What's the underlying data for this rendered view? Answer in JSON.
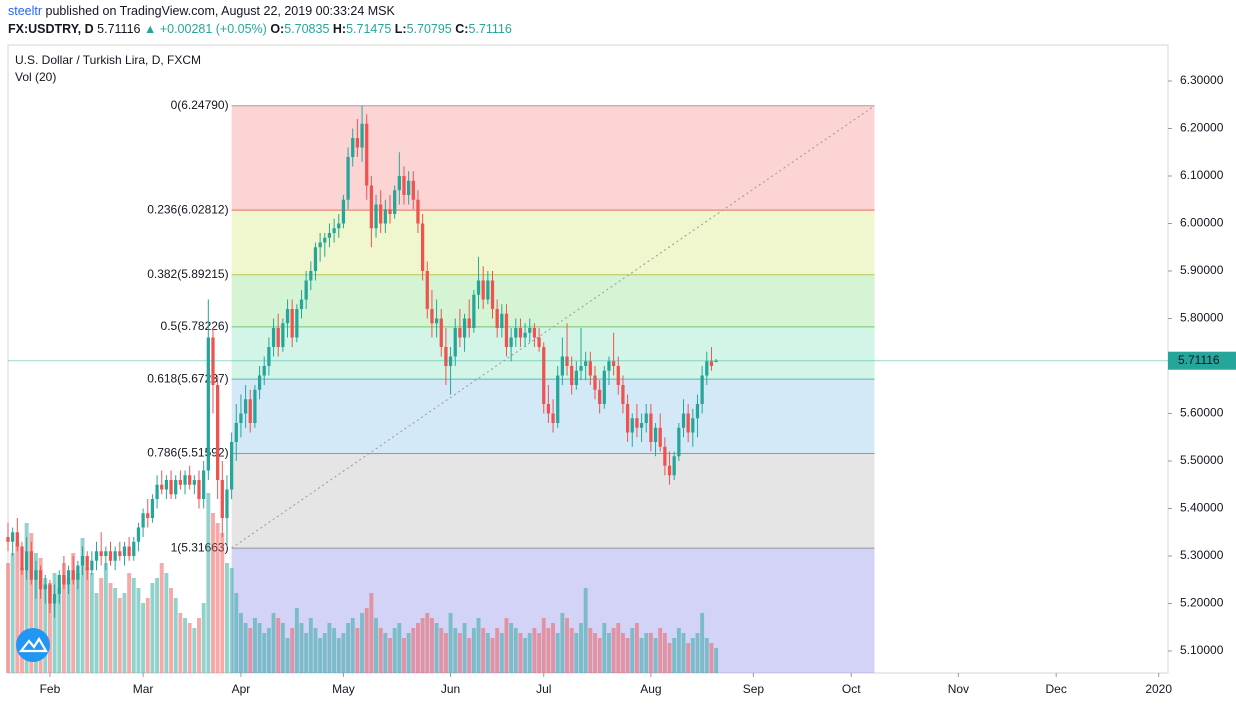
{
  "header": {
    "author": "steeltr",
    "published": "published on TradingView.com, August 22, 2019 00:33:24 MSK",
    "symbol": "FX:USDTRY, D",
    "last": "5.71116",
    "change": "▲ +0.00281 (+0.05%)",
    "ohlc": [
      {
        "key": "O:",
        "value": "5.70835"
      },
      {
        "key": "H:",
        "value": "5.71475"
      },
      {
        "key": "L:",
        "value": "5.70795"
      },
      {
        "key": "C:",
        "value": "5.71116"
      }
    ]
  },
  "chart_data": {
    "type": "candlestick",
    "title": "U.S. Dollar / Turkish Lira, D, FXCM",
    "volume_label": "Vol (20)",
    "up_color": "#26a69a",
    "down_color": "#ef5350",
    "xlim": [
      0,
      249
    ],
    "xticks": [
      {
        "value": 9,
        "label": "Feb"
      },
      {
        "value": 29,
        "label": "Mar"
      },
      {
        "value": 50,
        "label": "Apr"
      },
      {
        "value": 72,
        "label": "May"
      },
      {
        "value": 95,
        "label": "Jun"
      },
      {
        "value": 115,
        "label": "Jul"
      },
      {
        "value": 138,
        "label": "Aug"
      },
      {
        "value": 160,
        "label": "Sep"
      },
      {
        "value": 181,
        "label": "Oct"
      },
      {
        "value": 204,
        "label": "Nov"
      },
      {
        "value": 225,
        "label": "Dec"
      },
      {
        "value": 247,
        "label": "2020"
      }
    ],
    "ylim": [
      5.0537,
      6.3758
    ],
    "yticks": [
      {
        "value": 5.1,
        "label": "5.10000"
      },
      {
        "value": 5.2,
        "label": "5.20000"
      },
      {
        "value": 5.3,
        "label": "5.30000"
      },
      {
        "value": 5.4,
        "label": "5.40000"
      },
      {
        "value": 5.5,
        "label": "5.50000"
      },
      {
        "value": 5.6,
        "label": "5.60000"
      },
      {
        "value": 5.7,
        "label": "5.70000"
      },
      {
        "value": 5.8,
        "label": "5.80000"
      },
      {
        "value": 5.9,
        "label": "5.90000"
      },
      {
        "value": 6.0,
        "label": "6.00000"
      },
      {
        "value": 6.1,
        "label": "6.10000"
      },
      {
        "value": 6.2,
        "label": "6.20000"
      },
      {
        "value": 6.3,
        "label": "6.30000"
      }
    ],
    "last_price": {
      "value": 5.71116,
      "label": "5.71116",
      "color": "#26a69a"
    },
    "candles": [
      [
        5.34,
        5.37,
        5.31,
        5.33
      ],
      [
        5.33,
        5.36,
        5.3,
        5.35
      ],
      [
        5.35,
        5.38,
        5.31,
        5.32
      ],
      [
        5.32,
        5.33,
        5.26,
        5.27
      ],
      [
        5.27,
        5.34,
        5.25,
        5.31
      ],
      [
        5.31,
        5.33,
        5.24,
        5.25
      ],
      [
        5.25,
        5.29,
        5.21,
        5.27
      ],
      [
        5.27,
        5.28,
        5.21,
        5.23
      ],
      [
        5.23,
        5.26,
        5.2,
        5.24
      ],
      [
        5.24,
        5.25,
        5.18,
        5.2
      ],
      [
        5.2,
        5.24,
        5.17,
        5.22
      ],
      [
        5.22,
        5.27,
        5.2,
        5.26
      ],
      [
        5.26,
        5.3,
        5.23,
        5.24
      ],
      [
        5.24,
        5.28,
        5.22,
        5.27
      ],
      [
        5.27,
        5.3,
        5.24,
        5.25
      ],
      [
        5.25,
        5.29,
        5.23,
        5.28
      ],
      [
        5.28,
        5.32,
        5.26,
        5.3
      ],
      [
        5.3,
        5.31,
        5.25,
        5.27
      ],
      [
        5.27,
        5.31,
        5.26,
        5.29
      ],
      [
        5.29,
        5.33,
        5.27,
        5.31
      ],
      [
        5.31,
        5.35,
        5.28,
        5.3
      ],
      [
        5.3,
        5.32,
        5.27,
        5.31
      ],
      [
        5.31,
        5.33,
        5.28,
        5.29
      ],
      [
        5.29,
        5.32,
        5.27,
        5.31
      ],
      [
        5.31,
        5.33,
        5.29,
        5.3
      ],
      [
        5.3,
        5.33,
        5.28,
        5.32
      ],
      [
        5.32,
        5.34,
        5.29,
        5.3
      ],
      [
        5.3,
        5.34,
        5.29,
        5.33
      ],
      [
        5.33,
        5.37,
        5.31,
        5.36
      ],
      [
        5.36,
        5.4,
        5.34,
        5.39
      ],
      [
        5.39,
        5.42,
        5.36,
        5.38
      ],
      [
        5.38,
        5.43,
        5.37,
        5.42
      ],
      [
        5.42,
        5.47,
        5.4,
        5.45
      ],
      [
        5.45,
        5.48,
        5.43,
        5.44
      ],
      [
        5.44,
        5.47,
        5.42,
        5.46
      ],
      [
        5.46,
        5.48,
        5.42,
        5.43
      ],
      [
        5.43,
        5.47,
        5.42,
        5.46
      ],
      [
        5.46,
        5.48,
        5.44,
        5.45
      ],
      [
        5.45,
        5.48,
        5.43,
        5.47
      ],
      [
        5.47,
        5.49,
        5.44,
        5.45
      ],
      [
        5.45,
        5.47,
        5.43,
        5.46
      ],
      [
        5.46,
        5.48,
        5.4,
        5.42
      ],
      [
        5.42,
        5.5,
        5.4,
        5.48
      ],
      [
        5.48,
        5.84,
        5.46,
        5.76
      ],
      [
        5.76,
        5.78,
        5.6,
        5.66
      ],
      [
        5.66,
        5.68,
        5.42,
        5.46
      ],
      [
        5.46,
        5.5,
        5.34,
        5.38
      ],
      [
        5.38,
        5.47,
        5.32,
        5.44
      ],
      [
        5.44,
        5.56,
        5.42,
        5.54
      ],
      [
        5.54,
        5.62,
        5.5,
        5.58
      ],
      [
        5.58,
        5.64,
        5.55,
        5.6
      ],
      [
        5.6,
        5.66,
        5.57,
        5.63
      ],
      [
        5.63,
        5.65,
        5.56,
        5.58
      ],
      [
        5.58,
        5.66,
        5.57,
        5.65
      ],
      [
        5.65,
        5.7,
        5.63,
        5.68
      ],
      [
        5.68,
        5.72,
        5.66,
        5.7
      ],
      [
        5.7,
        5.76,
        5.68,
        5.74
      ],
      [
        5.74,
        5.8,
        5.72,
        5.78
      ],
      [
        5.78,
        5.81,
        5.72,
        5.74
      ],
      [
        5.74,
        5.8,
        5.73,
        5.79
      ],
      [
        5.79,
        5.84,
        5.76,
        5.82
      ],
      [
        5.82,
        5.84,
        5.74,
        5.76
      ],
      [
        5.76,
        5.83,
        5.75,
        5.82
      ],
      [
        5.82,
        5.86,
        5.8,
        5.84
      ],
      [
        5.84,
        5.9,
        5.82,
        5.88
      ],
      [
        5.88,
        5.92,
        5.86,
        5.9
      ],
      [
        5.9,
        5.96,
        5.88,
        5.95
      ],
      [
        5.95,
        5.98,
        5.92,
        5.96
      ],
      [
        5.96,
        5.98,
        5.93,
        5.97
      ],
      [
        5.97,
        6.0,
        5.95,
        5.98
      ],
      [
        5.98,
        6.01,
        5.96,
        5.99
      ],
      [
        5.99,
        6.02,
        5.97,
        6.0
      ],
      [
        6.0,
        6.06,
        5.99,
        6.05
      ],
      [
        6.05,
        6.16,
        6.03,
        6.14
      ],
      [
        6.14,
        6.2,
        6.12,
        6.18
      ],
      [
        6.18,
        6.22,
        6.14,
        6.16
      ],
      [
        6.16,
        6.2479,
        6.13,
        6.21
      ],
      [
        6.21,
        6.23,
        6.05,
        6.08
      ],
      [
        6.08,
        6.1,
        5.95,
        5.99
      ],
      [
        5.99,
        6.06,
        5.97,
        6.04
      ],
      [
        6.04,
        6.07,
        5.98,
        6.0
      ],
      [
        6.0,
        6.05,
        5.98,
        6.03
      ],
      [
        6.03,
        6.06,
        6.0,
        6.02
      ],
      [
        6.02,
        6.08,
        6.01,
        6.07
      ],
      [
        6.07,
        6.15,
        6.04,
        6.1
      ],
      [
        6.1,
        6.12,
        6.04,
        6.06
      ],
      [
        6.06,
        6.11,
        6.04,
        6.09
      ],
      [
        6.09,
        6.11,
        6.03,
        6.05
      ],
      [
        6.05,
        6.07,
        5.98,
        6.0
      ],
      [
        6.0,
        6.02,
        5.88,
        5.9
      ],
      [
        5.9,
        5.92,
        5.8,
        5.82
      ],
      [
        5.82,
        5.86,
        5.76,
        5.79
      ],
      [
        5.79,
        5.84,
        5.76,
        5.8
      ],
      [
        5.8,
        5.82,
        5.72,
        5.74
      ],
      [
        5.74,
        5.78,
        5.66,
        5.7
      ],
      [
        5.7,
        5.74,
        5.64,
        5.72
      ],
      [
        5.72,
        5.8,
        5.7,
        5.78
      ],
      [
        5.78,
        5.82,
        5.74,
        5.76
      ],
      [
        5.76,
        5.81,
        5.73,
        5.8
      ],
      [
        5.8,
        5.84,
        5.76,
        5.78
      ],
      [
        5.78,
        5.86,
        5.77,
        5.85
      ],
      [
        5.85,
        5.93,
        5.82,
        5.88
      ],
      [
        5.88,
        5.91,
        5.82,
        5.84
      ],
      [
        5.84,
        5.9,
        5.83,
        5.88
      ],
      [
        5.88,
        5.9,
        5.8,
        5.82
      ],
      [
        5.82,
        5.84,
        5.76,
        5.78
      ],
      [
        5.78,
        5.83,
        5.76,
        5.81
      ],
      [
        5.81,
        5.83,
        5.72,
        5.74
      ],
      [
        5.74,
        5.78,
        5.71,
        5.76
      ],
      [
        5.76,
        5.8,
        5.74,
        5.78
      ],
      [
        5.78,
        5.8,
        5.74,
        5.76
      ],
      [
        5.76,
        5.79,
        5.74,
        5.77
      ],
      [
        5.77,
        5.8,
        5.75,
        5.78
      ],
      [
        5.78,
        5.79,
        5.74,
        5.76
      ],
      [
        5.76,
        5.78,
        5.73,
        5.74
      ],
      [
        5.74,
        5.75,
        5.6,
        5.62
      ],
      [
        5.62,
        5.66,
        5.58,
        5.6
      ],
      [
        5.6,
        5.63,
        5.56,
        5.58
      ],
      [
        5.58,
        5.7,
        5.57,
        5.68
      ],
      [
        5.68,
        5.76,
        5.66,
        5.72
      ],
      [
        5.72,
        5.79,
        5.68,
        5.7
      ],
      [
        5.7,
        5.72,
        5.64,
        5.66
      ],
      [
        5.66,
        5.71,
        5.65,
        5.69
      ],
      [
        5.69,
        5.78,
        5.67,
        5.7
      ],
      [
        5.7,
        5.73,
        5.67,
        5.71
      ],
      [
        5.71,
        5.73,
        5.66,
        5.68
      ],
      [
        5.68,
        5.7,
        5.63,
        5.65
      ],
      [
        5.65,
        5.67,
        5.6,
        5.62
      ],
      [
        5.62,
        5.7,
        5.61,
        5.69
      ],
      [
        5.69,
        5.72,
        5.66,
        5.71
      ],
      [
        5.71,
        5.77,
        5.68,
        5.7
      ],
      [
        5.7,
        5.72,
        5.64,
        5.66
      ],
      [
        5.66,
        5.68,
        5.6,
        5.62
      ],
      [
        5.62,
        5.64,
        5.54,
        5.56
      ],
      [
        5.56,
        5.6,
        5.53,
        5.59
      ],
      [
        5.59,
        5.62,
        5.55,
        5.57
      ],
      [
        5.57,
        5.6,
        5.54,
        5.58
      ],
      [
        5.58,
        5.62,
        5.56,
        5.6
      ],
      [
        5.6,
        5.62,
        5.52,
        5.54
      ],
      [
        5.54,
        5.58,
        5.51,
        5.57
      ],
      [
        5.57,
        5.6,
        5.52,
        5.53
      ],
      [
        5.53,
        5.55,
        5.47,
        5.49
      ],
      [
        5.49,
        5.52,
        5.45,
        5.47
      ],
      [
        5.47,
        5.52,
        5.46,
        5.51
      ],
      [
        5.51,
        5.58,
        5.5,
        5.57
      ],
      [
        5.57,
        5.63,
        5.55,
        5.6
      ],
      [
        5.6,
        5.62,
        5.54,
        5.56
      ],
      [
        5.56,
        5.61,
        5.53,
        5.59
      ],
      [
        5.59,
        5.64,
        5.55,
        5.62
      ],
      [
        5.62,
        5.7,
        5.6,
        5.68
      ],
      [
        5.68,
        5.73,
        5.66,
        5.71
      ],
      [
        5.71,
        5.74,
        5.69,
        5.7
      ],
      [
        5.70835,
        5.71475,
        5.70795,
        5.71116
      ]
    ],
    "volume": [
      110,
      120,
      130,
      105,
      150,
      140,
      120,
      115,
      95,
      90,
      100,
      85,
      110,
      95,
      120,
      100,
      135,
      105,
      100,
      80,
      95,
      110,
      90,
      85,
      75,
      80,
      100,
      95,
      85,
      70,
      75,
      90,
      95,
      110,
      100,
      85,
      75,
      60,
      55,
      50,
      45,
      55,
      70,
      180,
      160,
      150,
      140,
      110,
      105,
      80,
      60,
      50,
      45,
      55,
      50,
      40,
      45,
      60,
      55,
      50,
      35,
      45,
      65,
      50,
      40,
      55,
      45,
      35,
      40,
      50,
      45,
      35,
      40,
      50,
      55,
      45,
      60,
      65,
      80,
      55,
      45,
      40,
      35,
      45,
      50,
      35,
      40,
      45,
      50,
      55,
      60,
      55,
      50,
      45,
      40,
      60,
      45,
      40,
      50,
      35,
      45,
      55,
      45,
      40,
      35,
      45,
      40,
      55,
      50,
      45,
      40,
      35,
      40,
      45,
      40,
      55,
      45,
      50,
      40,
      60,
      55,
      45,
      40,
      50,
      85,
      45,
      40,
      35,
      50,
      40,
      45,
      50,
      40,
      35,
      45,
      50,
      35,
      40,
      40,
      35,
      45,
      40,
      30,
      35,
      45,
      40,
      30,
      35,
      40,
      60,
      35,
      30,
      25
    ],
    "vlim": [
      0,
      200
    ],
    "fib": {
      "start": 48,
      "end": 186,
      "bottom_fill": "rgba(110,110,230,0.3)",
      "levels": [
        {
          "price": 6.2479,
          "label": "0(6.24790)",
          "color": "#787b86",
          "fill": "rgba(239,83,80,0.25)"
        },
        {
          "price": 6.02812,
          "label": "0.236(6.02812)",
          "color": "#e53935",
          "fill": "rgba(205,225,90,0.3)"
        },
        {
          "price": 5.89215,
          "label": "0.382(5.89215)",
          "color": "#9cb826",
          "fill": "rgba(100,215,100,0.28)"
        },
        {
          "price": 5.78226,
          "label": "0.5(5.78226)",
          "color": "#4caf50",
          "fill": "rgba(80,215,160,0.25)"
        },
        {
          "price": 5.67237,
          "label": "0.618(5.67237)",
          "color": "#1fa38f",
          "fill": "rgba(100,175,230,0.28)"
        },
        {
          "price": 5.51592,
          "label": "0.786(5.51592)",
          "color": "#2a8fc7",
          "fill": "rgba(150,150,150,0.25)"
        },
        {
          "price": 5.31663,
          "label": "1(5.31663)",
          "color": "#787b86"
        }
      ]
    }
  }
}
